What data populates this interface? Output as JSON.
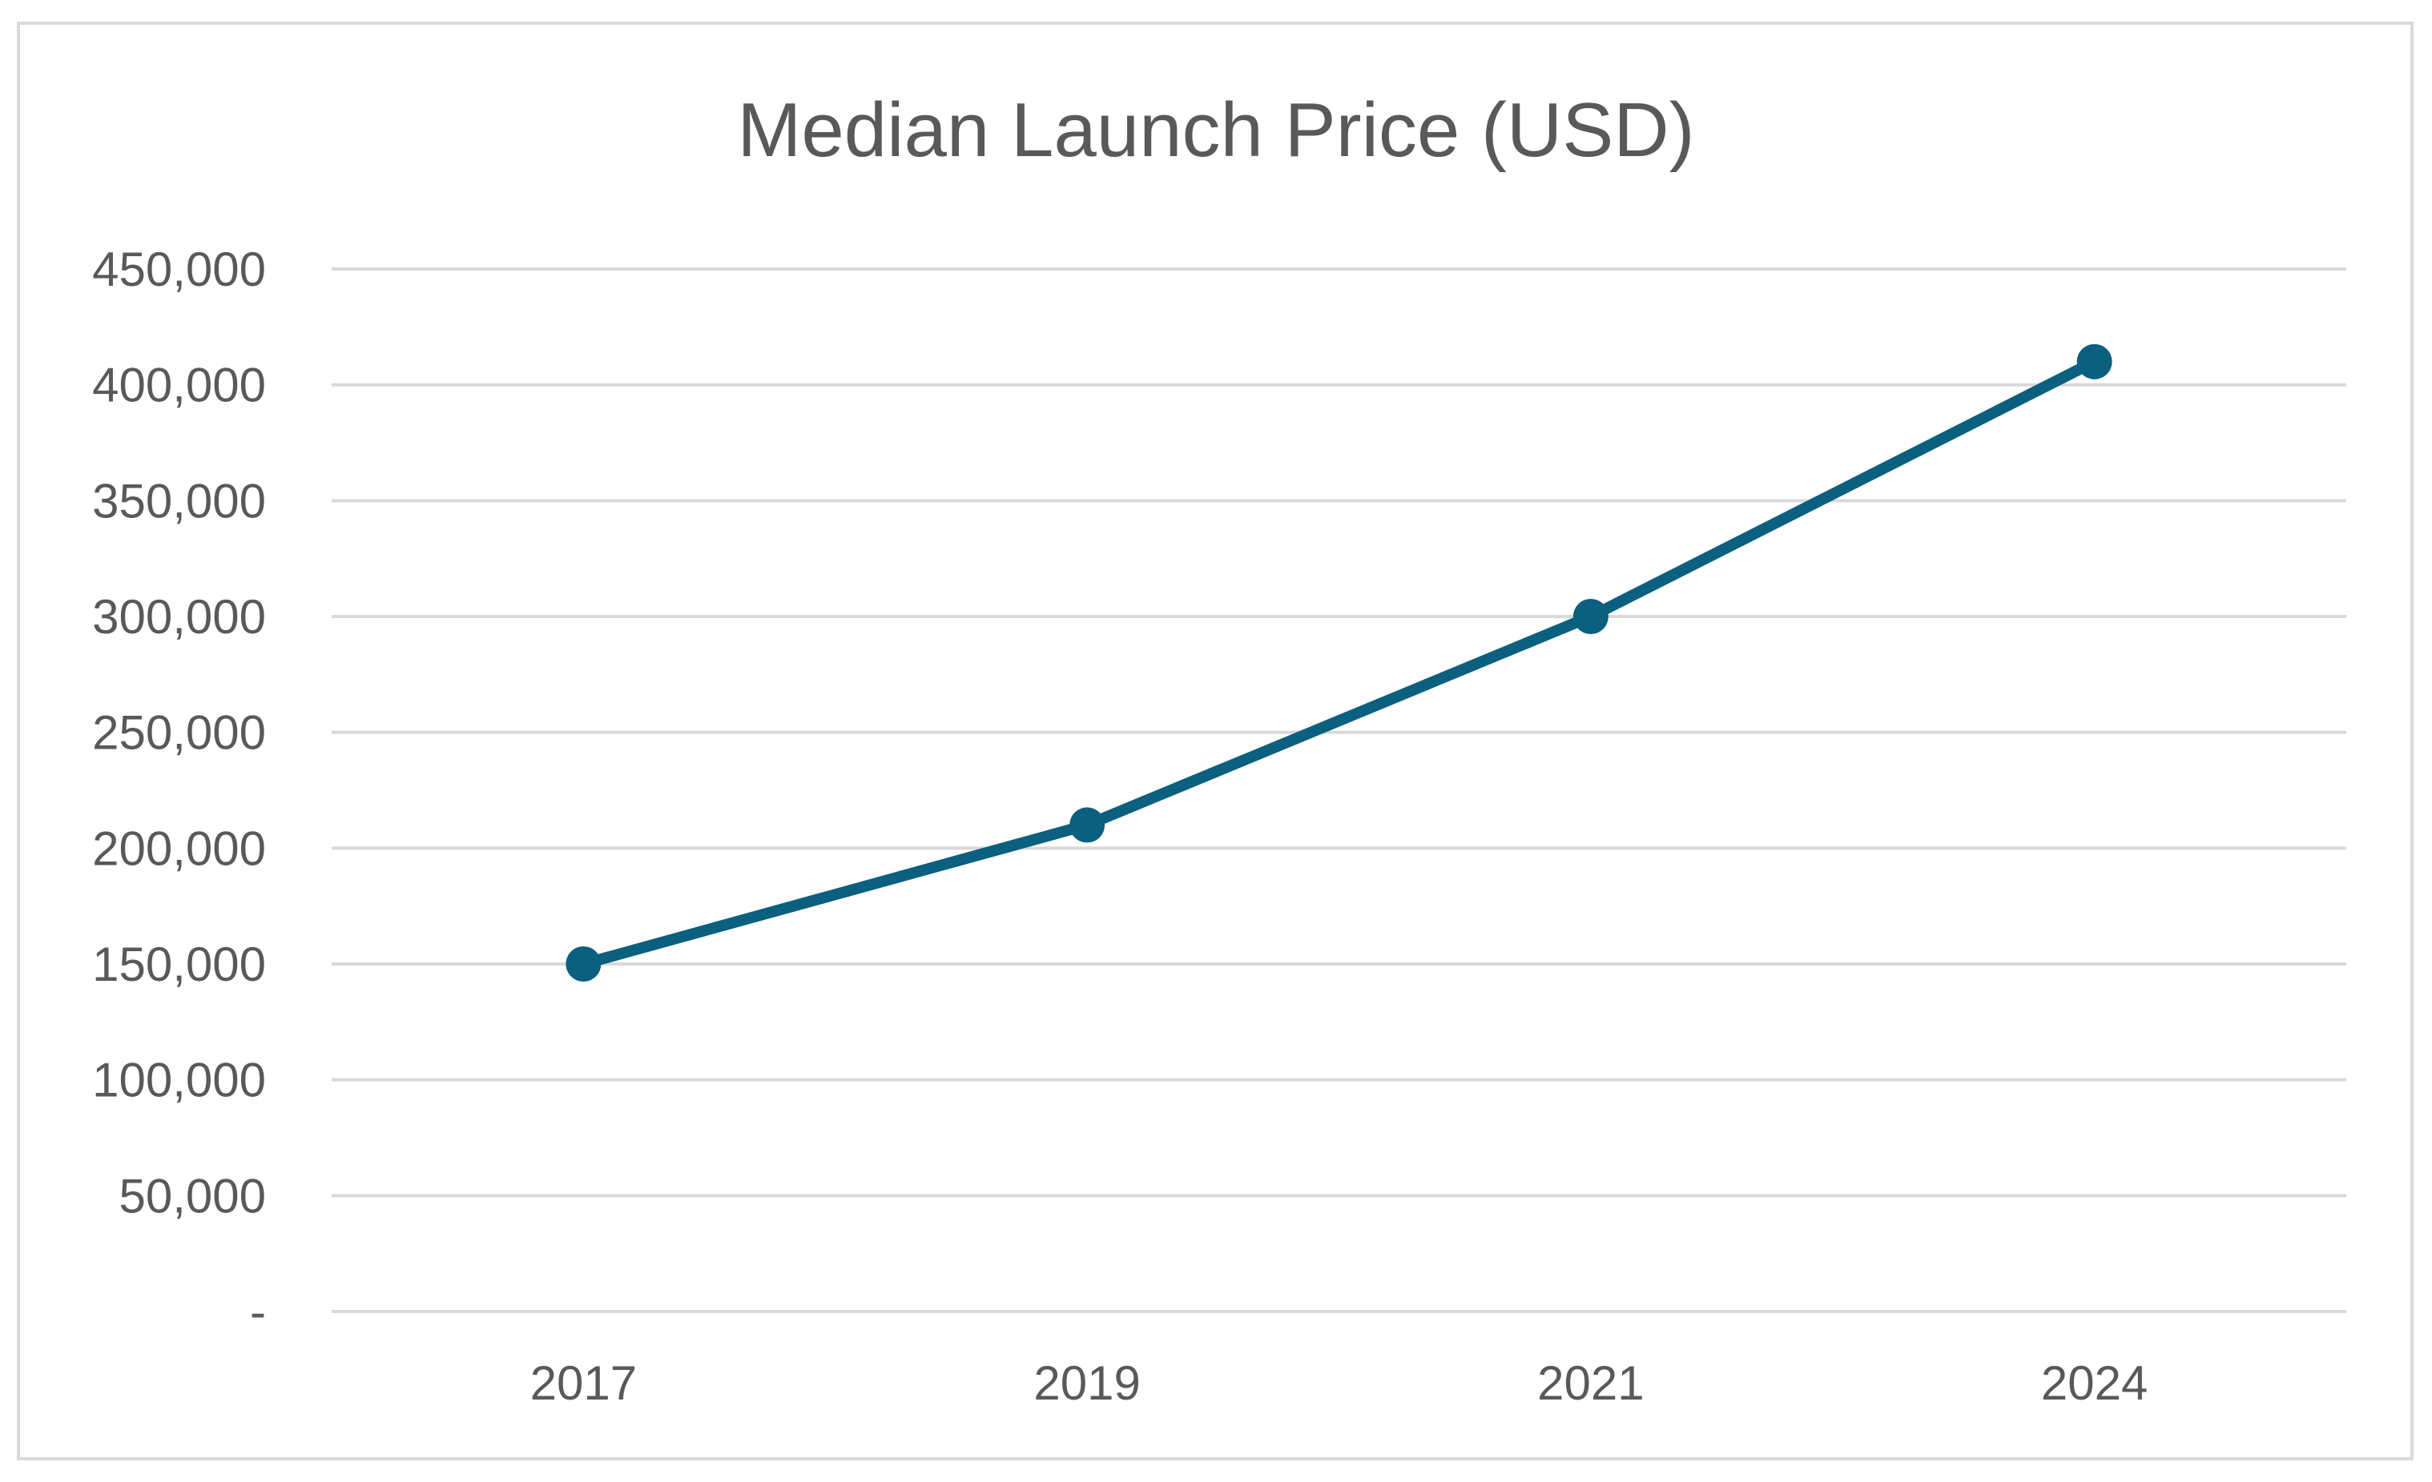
{
  "chart_data": {
    "type": "line",
    "title": "Median Launch Price (USD)",
    "xlabel": "",
    "ylabel": "",
    "categories": [
      "2017",
      "2019",
      "2021",
      "2024"
    ],
    "series": [
      {
        "values": [
          150000,
          210000,
          300000,
          410000
        ],
        "color": "#0b5f7f"
      }
    ],
    "ylim": [
      0,
      450000
    ],
    "yticks": [
      0,
      50000,
      100000,
      150000,
      200000,
      250000,
      300000,
      350000,
      400000,
      450000
    ],
    "ytick_labels": [
      "-",
      "50,000",
      "100,000",
      "150,000",
      "200,000",
      "250,000",
      "300,000",
      "350,000",
      "400,000",
      "450,000"
    ],
    "grid": true,
    "legend": "none",
    "colors": {
      "series": "#0b5f7f",
      "grid": "#d9d9d9",
      "text": "#595959",
      "frame": "#d9d9d9"
    }
  }
}
